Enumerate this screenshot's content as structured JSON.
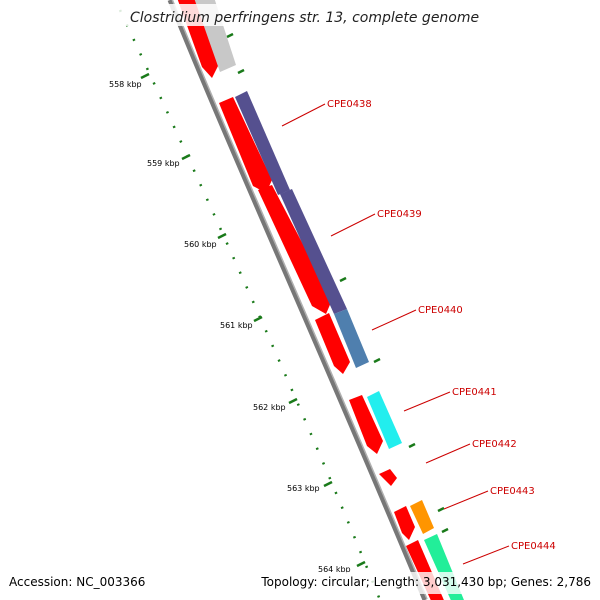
{
  "title": "Clostridium perfringens str. 13, complete genome",
  "footer": {
    "accession": "Accession: NC_003366",
    "summary": "Topology: circular; Length: 3,031,430 bp; Genes: 2,786"
  },
  "colors": {
    "backbone": "#808080",
    "tick": "#1a7a1a",
    "label": "#cc0000",
    "cds": "#ff0000",
    "grey": "#c8c8c8",
    "purple": "#55508f",
    "steel": "#4f7fae",
    "cyan": "#22eeee",
    "orange": "#ff9500",
    "mint": "#22ee99"
  },
  "scale_labels": [
    "558 kbp",
    "559 kbp",
    "560 kbp",
    "561 kbp",
    "562 kbp",
    "563 kbp",
    "564 kbp"
  ],
  "genes": [
    {
      "label": "CPE0438"
    },
    {
      "label": "CPE0439"
    },
    {
      "label": "CPE0440"
    },
    {
      "label": "CPE0441"
    },
    {
      "label": "CPE0442"
    },
    {
      "label": "CPE0443"
    },
    {
      "label": "CPE0444"
    }
  ]
}
